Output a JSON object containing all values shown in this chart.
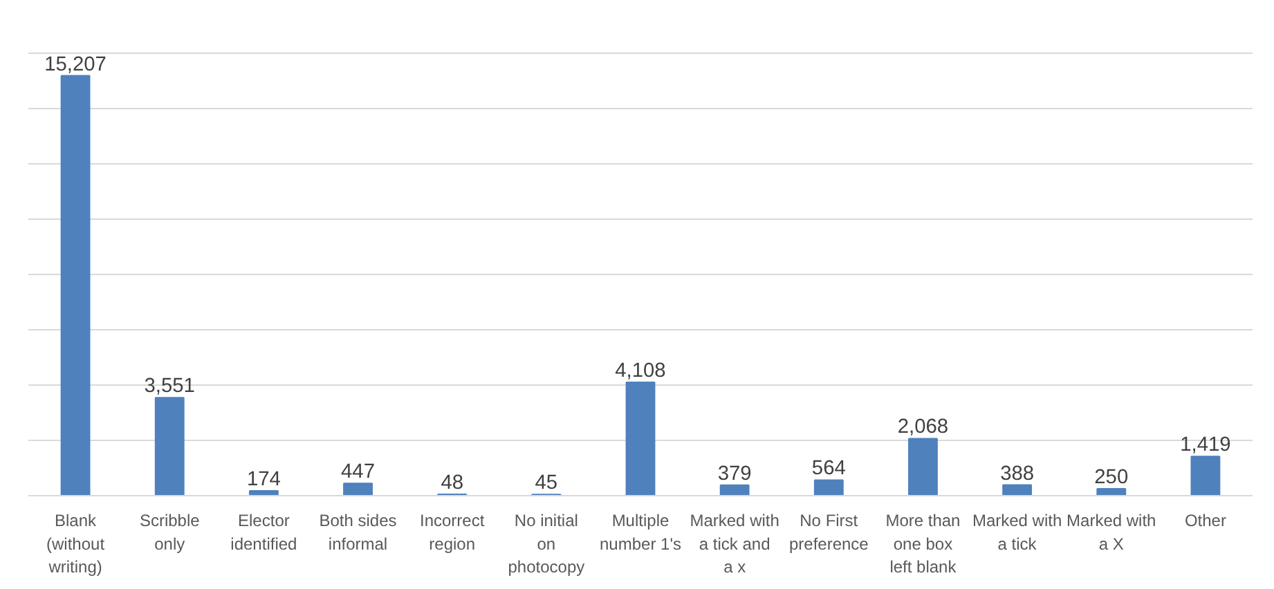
{
  "chart_data": {
    "type": "bar",
    "categories": [
      "Blank (without writing)",
      "Scribble only",
      "Elector identified",
      "Both sides informal",
      "Incorrect region",
      "No initial on photocopy",
      "Multiple number 1's",
      "Marked with a tick and a x",
      "No First preference",
      "More than one box left blank",
      "Marked with a tick",
      "Marked with a X",
      "Other"
    ],
    "values": [
      15207,
      3551,
      174,
      447,
      48,
      45,
      4108,
      379,
      564,
      2068,
      388,
      250,
      1419
    ],
    "color": "#4f81bd",
    "data_labels": true,
    "value_labels": [
      "15,207",
      "3,551",
      "174",
      "447",
      "48",
      "45",
      "4,108",
      "379",
      "564",
      "2,068",
      "388",
      "250",
      "1,419"
    ],
    "tick_labels": "x",
    "grid": "y"
  }
}
